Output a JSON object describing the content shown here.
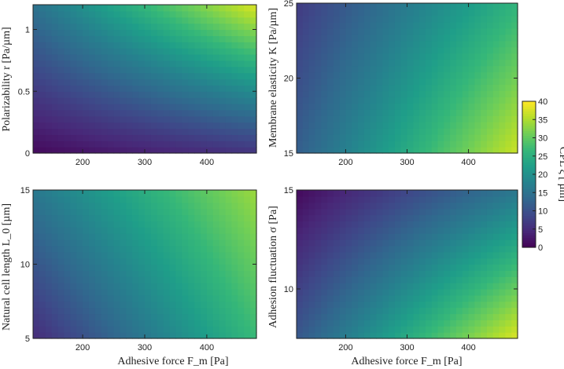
{
  "chart_data": [
    {
      "type": "heatmap",
      "panel": "top-left",
      "xlabel": "",
      "ylabel": "Polarizability r [Pa/µm]",
      "xlim": [
        120,
        480
      ],
      "ylim": [
        0,
        1.2
      ],
      "xticks": [
        200,
        300,
        400
      ],
      "yticks": [
        0,
        0.5,
        1
      ],
      "yticklabels": [
        "0",
        "0.5",
        "1"
      ],
      "grid": false,
      "colormap": "viridis",
      "clim": [
        0,
        40
      ],
      "corner_values": {
        "x_min_y_min": 1,
        "x_max_y_min": 6,
        "x_min_y_max": 15,
        "x_max_y_max": 38
      }
    },
    {
      "type": "heatmap",
      "panel": "top-right",
      "xlabel": "",
      "ylabel": "Membrane elasticity K [Pa/µm]",
      "xlim": [
        120,
        480
      ],
      "ylim": [
        15,
        25
      ],
      "xticks": [
        200,
        300,
        400
      ],
      "yticks": [
        15,
        20,
        25
      ],
      "yticklabels": [
        "15",
        "20",
        "25"
      ],
      "grid": false,
      "colormap": "viridis",
      "clim": [
        0,
        40
      ],
      "corner_values": {
        "x_min_y_min": 12,
        "x_max_y_min": 37,
        "x_min_y_max": 7,
        "x_max_y_max": 26
      }
    },
    {
      "type": "heatmap",
      "panel": "bottom-left",
      "xlabel": "Adhesive force F_m [Pa]",
      "ylabel": "Natural cell length L_0 [µm]",
      "xlim": [
        120,
        480
      ],
      "ylim": [
        5,
        15
      ],
      "xticks": [
        200,
        300,
        400
      ],
      "yticks": [
        5,
        10,
        15
      ],
      "yticklabels": [
        "5",
        "10",
        "15"
      ],
      "grid": false,
      "colormap": "viridis",
      "clim": [
        0,
        40
      ],
      "corner_values": {
        "x_min_y_min": 5,
        "x_max_y_min": 27,
        "x_min_y_max": 16,
        "x_max_y_max": 34
      }
    },
    {
      "type": "heatmap",
      "panel": "bottom-right",
      "xlabel": "Adhesive force F_m [Pa]",
      "ylabel": "Adhesion fluctuation σ [Pa]",
      "xlim": [
        120,
        480
      ],
      "ylim": [
        7.5,
        15
      ],
      "xticks": [
        200,
        300,
        400
      ],
      "yticks": [
        10,
        15
      ],
      "yticklabels": [
        "10",
        "15"
      ],
      "grid": false,
      "colormap": "viridis",
      "clim": [
        0,
        40
      ],
      "corner_values": {
        "x_min_y_min": 11,
        "x_max_y_min": 38,
        "x_min_y_max": 1,
        "x_max_y_max": 16
      }
    }
  ],
  "colorbar": {
    "label": "CPL ξ [ µm]",
    "ticks": [
      0,
      5,
      10,
      15,
      20,
      25,
      30,
      35,
      40
    ],
    "clim": [
      0,
      40
    ],
    "colormap": "viridis"
  }
}
